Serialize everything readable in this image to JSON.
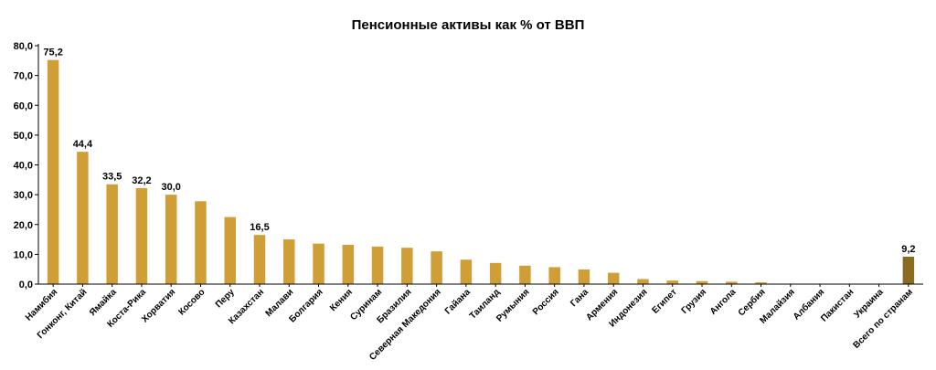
{
  "chart_data": {
    "type": "bar",
    "title": "Пенсионные активы как % от ВВП",
    "categories": [
      "Намибия",
      "Гонконг, Китай",
      "Ямайка",
      "Коста-Рика",
      "Хорватия",
      "Косово",
      "Перу",
      "Казахстан",
      "Малави",
      "Болгария",
      "Кения",
      "Суринам",
      "Бразилия",
      "Северная Македония",
      "Гайана",
      "Таиланд",
      "Румыния",
      "Россия",
      "Гана",
      "Армения",
      "Индонезия",
      "Египет",
      "Грузия",
      "Ангола",
      "Сербия",
      "Малайзия",
      "Албания",
      "Пакистан",
      "Украина",
      "Всего по странам"
    ],
    "values": [
      75.2,
      44.4,
      33.5,
      32.2,
      30.0,
      27.8,
      22.5,
      16.5,
      15.0,
      13.6,
      13.2,
      12.6,
      12.2,
      11.0,
      8.2,
      7.1,
      6.2,
      5.7,
      4.9,
      3.8,
      1.7,
      1.2,
      1.0,
      0.8,
      0.6,
      0.1,
      0.05,
      0.05,
      0.05,
      9.2
    ],
    "data_labels": [
      "75,2",
      "44,4",
      "33,5",
      "32,2",
      "30,0",
      "",
      "",
      "16,5",
      "",
      "",
      "",
      "",
      "",
      "",
      "",
      "",
      "",
      "",
      "",
      "",
      "",
      "",
      "",
      "",
      "",
      "",
      "",
      "",
      "",
      "9,2"
    ],
    "yticks": [
      "0,0",
      "10,0",
      "20,0",
      "30,0",
      "40,0",
      "50,0",
      "60,0",
      "70,0",
      "80,0"
    ],
    "ylim": [
      0,
      80
    ],
    "grid": false,
    "legend": "none",
    "colors": {
      "bar": "#D09E36",
      "total_bar": "#8B6A22",
      "axis": "#000000"
    }
  }
}
